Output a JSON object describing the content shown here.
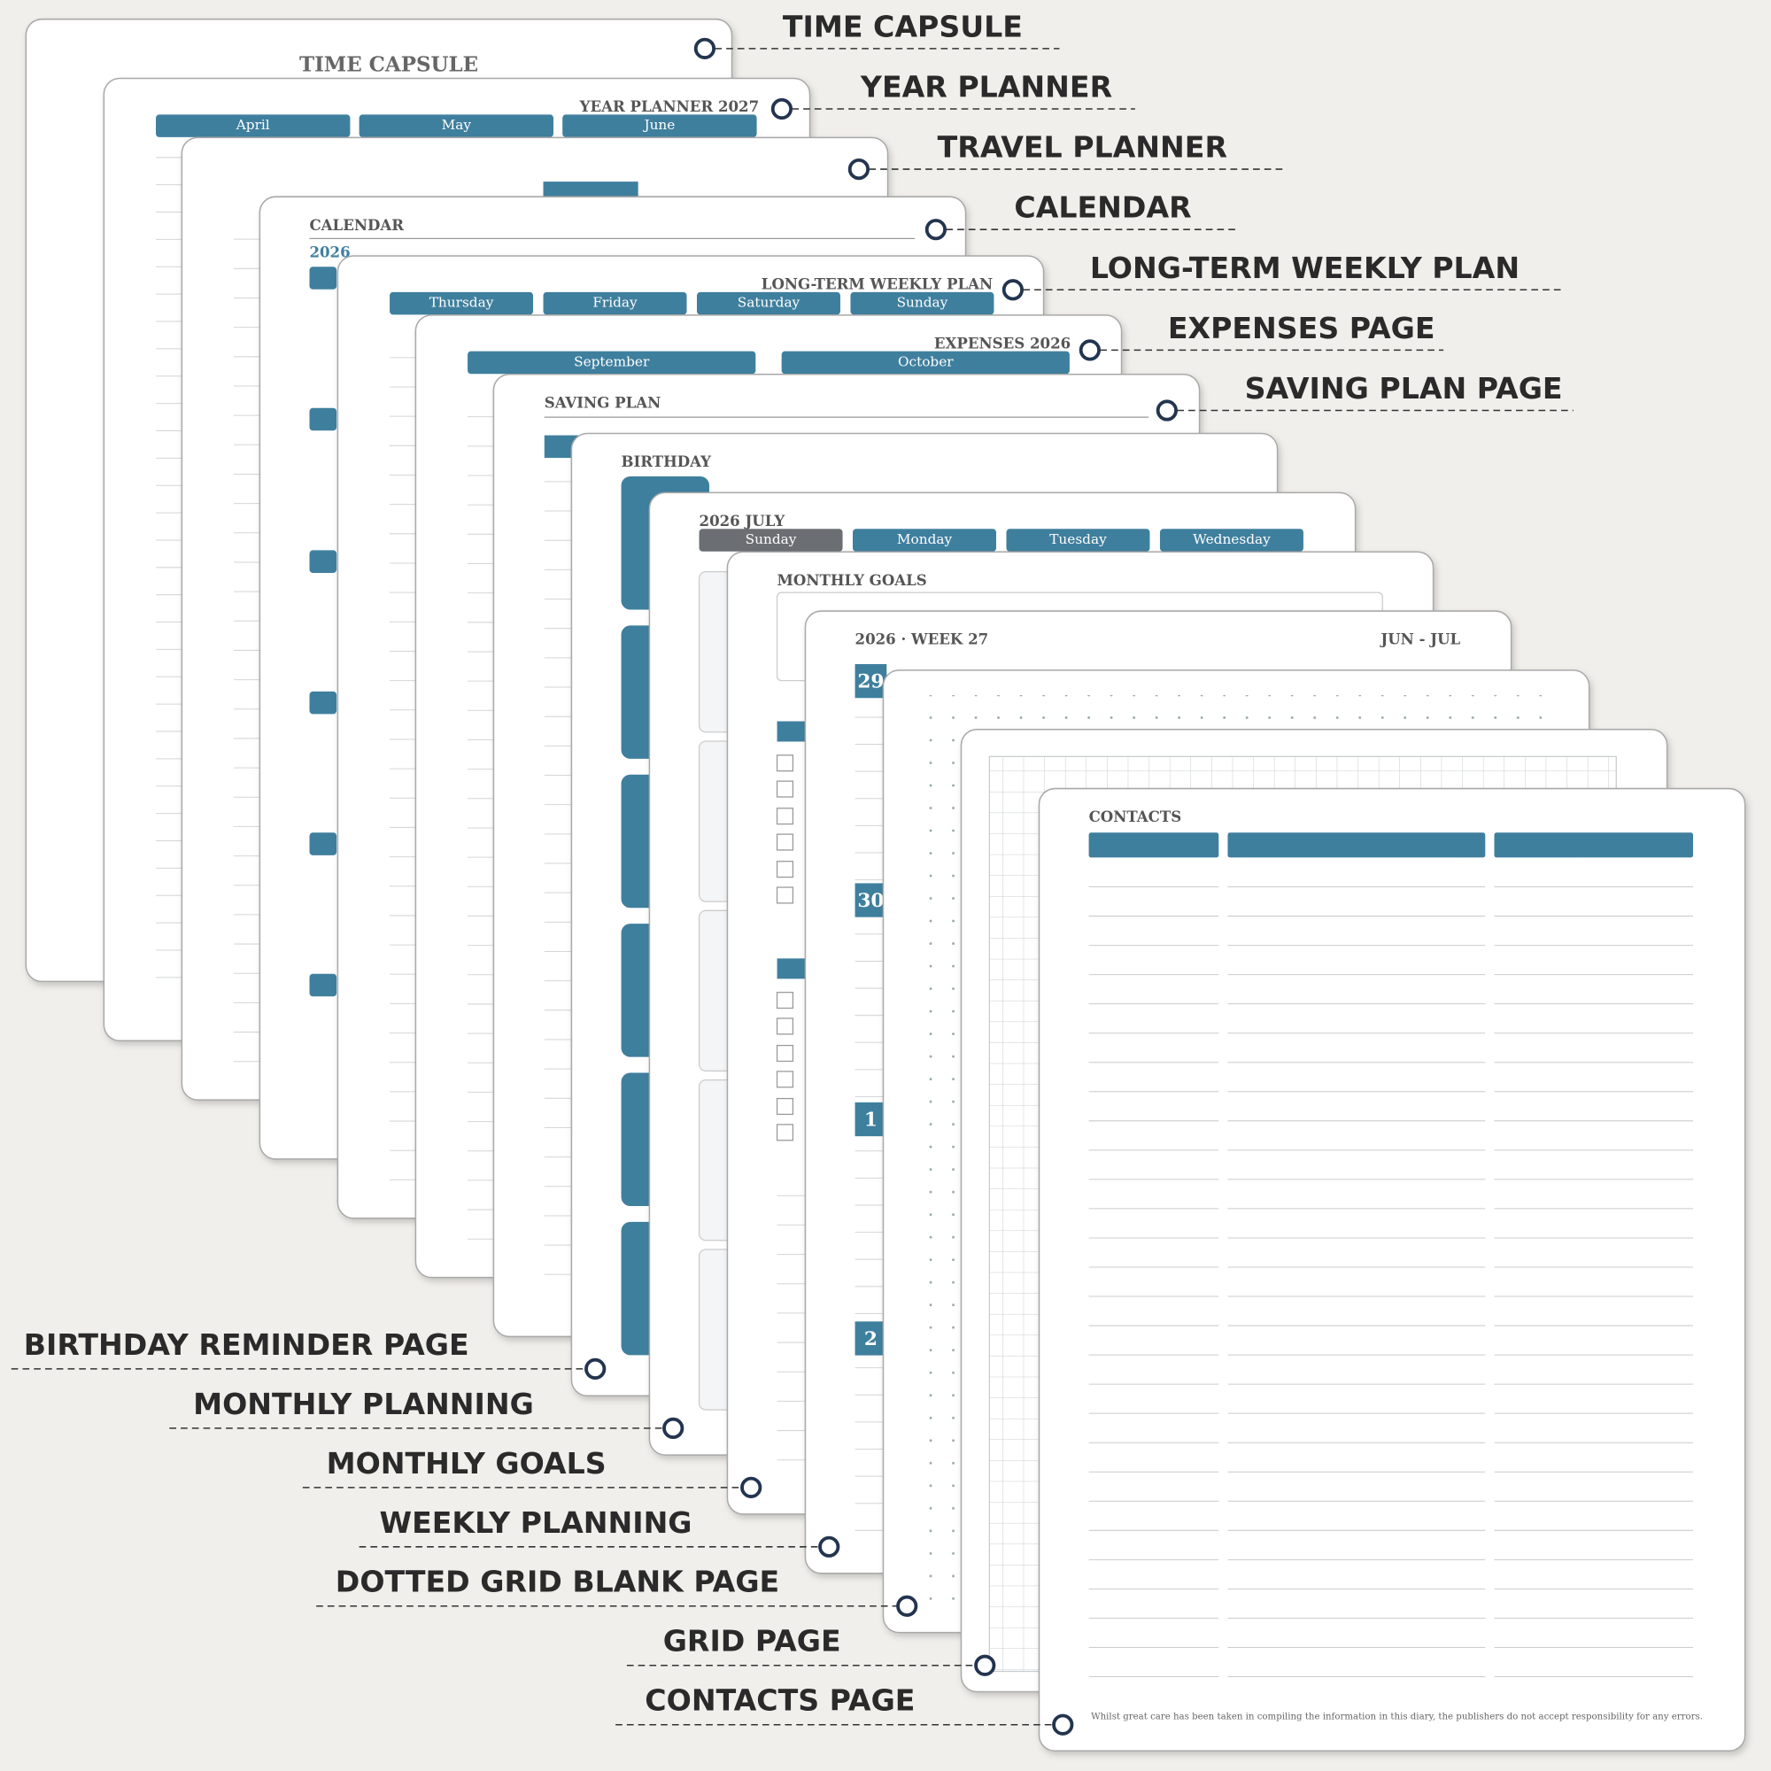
{
  "callouts_right": [
    "TIME CAPSULE",
    "YEAR PLANNER",
    "TRAVEL PLANNER",
    "CALENDAR",
    "LONG-TERM WEEKLY PLAN",
    "EXPENSES PAGE",
    "SAVING PLAN PAGE"
  ],
  "callouts_left": [
    "BIRTHDAY REMINDER PAGE",
    "MONTHLY PLANNING",
    "MONTHLY GOALS",
    "WEEKLY PLANNING",
    "DOTTED GRID BLANK PAGE",
    "GRID PAGE",
    "CONTACTS PAGE"
  ],
  "pages": {
    "time_capsule": {
      "title": "TIME CAPSULE"
    },
    "year_planner": {
      "title": "YEAR PLANNER 2027",
      "tabs": [
        "April",
        "May",
        "June"
      ]
    },
    "calendar": {
      "title": "CALENDAR",
      "year": "2026"
    },
    "weekly_plan": {
      "title": "LONG-TERM WEEKLY PLAN",
      "tabs": [
        "Thursday",
        "Friday",
        "Saturday",
        "Sunday"
      ]
    },
    "expenses": {
      "title": "EXPENSES 2026",
      "tabs": [
        "September",
        "October"
      ]
    },
    "saving": {
      "title": "SAVING PLAN"
    },
    "birthday": {
      "title": "BIRTHDAY"
    },
    "month": {
      "title": "2026 JULY",
      "tabs": [
        "Sunday",
        "Monday",
        "Tuesday",
        "Wednesday"
      ]
    },
    "goals": {
      "title": "MONTHLY GOALS"
    },
    "week": {
      "title": "2026 · WEEK 27",
      "range": "JUN - JUL",
      "days": [
        "29",
        "30",
        "1",
        "2"
      ]
    },
    "contacts": {
      "title": "CONTACTS",
      "footer": "Whilst great care has been taken in compiling the information in this diary, the publishers do not accept responsibility for any errors."
    }
  }
}
